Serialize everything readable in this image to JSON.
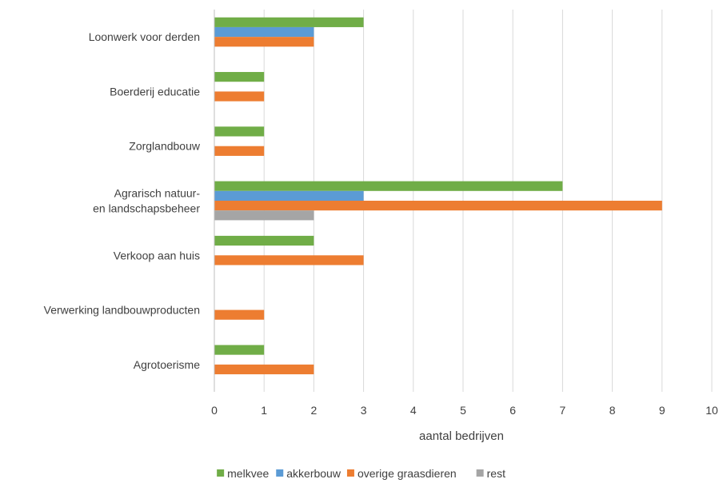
{
  "chart_data": {
    "type": "bar",
    "orientation": "horizontal",
    "categories": [
      "Loonwerk voor derden",
      "Boerderij educatie",
      "Zorglandbouw",
      "Agrarisch natuur- en landschapsbeheer",
      "Verkoop aan huis",
      "Verwerking landbouwproducten",
      "Agrotoerisme"
    ],
    "category_lines": [
      [
        "Loonwerk voor derden"
      ],
      [
        "Boerderij educatie"
      ],
      [
        "Zorglandbouw"
      ],
      [
        "Agrarisch natuur-",
        "en landschapsbeheer"
      ],
      [
        "Verkoop aan huis"
      ],
      [
        "Verwerking landbouwproducten"
      ],
      [
        "Agrotoerisme"
      ]
    ],
    "series": [
      {
        "name": "melkvee",
        "color": "#70ad47",
        "values": [
          3,
          1,
          1,
          7,
          2,
          0,
          1
        ]
      },
      {
        "name": "akkerbouw",
        "color": "#5b9bd5",
        "values": [
          2,
          0,
          0,
          3,
          0,
          0,
          0
        ]
      },
      {
        "name": "overige graasdieren",
        "color": "#ed7d31",
        "values": [
          2,
          1,
          1,
          9,
          3,
          1,
          2
        ]
      },
      {
        "name": "rest",
        "color": "#a5a5a5",
        "values": [
          0,
          0,
          0,
          2,
          0,
          0,
          0
        ]
      }
    ],
    "xlabel": "aantal bedrijven",
    "xlim": [
      0,
      10
    ],
    "xticks": [
      0,
      1,
      2,
      3,
      4,
      5,
      6,
      7,
      8,
      9,
      10
    ],
    "grid": "vertical",
    "legend_position": "bottom"
  }
}
